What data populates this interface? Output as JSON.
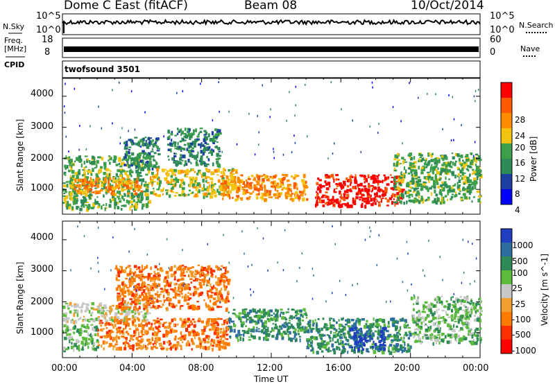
{
  "header": {
    "station": "Dome C East (fitACF)",
    "beam": "Beam 08",
    "date": "10/Oct/2014"
  },
  "left_labels": {
    "nsky": "N.Sky",
    "freq_line1": "Freq.",
    "freq_line2": "[MHz]",
    "cpid": "CPID"
  },
  "right_labels": {
    "nsearch": "N.Search",
    "nave": "Nave"
  },
  "strip_ticks": {
    "noise_left": [
      "10^5",
      "10^0"
    ],
    "noise_right": [
      "10^5",
      "10^0"
    ],
    "freq_left": [
      "18",
      "8"
    ],
    "freq_right": [
      "60",
      "0"
    ]
  },
  "cpid_text": "twofsound 3501",
  "colors": {
    "power_scale": [
      "#0000ff",
      "#1c3fa0",
      "#2e8b57",
      "#3c9f4a",
      "#f2c40f",
      "#ff8c00",
      "#ff5a00",
      "#ff0000"
    ],
    "velocity_scale": [
      "#1f3fbf",
      "#2d6e9f",
      "#2e8b57",
      "#5dbb3c",
      "#c8c8c8",
      "#f0a030",
      "#ff7a00",
      "#ff3000",
      "#ff0000"
    ]
  },
  "chart_data": [
    {
      "type": "heatmap",
      "title": "Power",
      "ylabel": "Slant Range [km]",
      "ylim": [
        200,
        4600
      ],
      "yticks": [
        "1000",
        "2000",
        "3000",
        "4000"
      ],
      "colorbar_label": "Power [dB]",
      "colorbar_ticks": [
        "4",
        "8",
        "12",
        "16",
        "20",
        "24",
        "28"
      ],
      "bands": [
        {
          "start_hr": 0.0,
          "end_hr": 5.0,
          "range_lo": 400,
          "range_hi": 2100,
          "level": 3
        },
        {
          "start_hr": 0.5,
          "end_hr": 4.5,
          "range_lo": 900,
          "range_hi": 1400,
          "level": 5
        },
        {
          "start_hr": 3.5,
          "end_hr": 5.5,
          "range_lo": 1700,
          "range_hi": 2700,
          "level": 2
        },
        {
          "start_hr": 5.0,
          "end_hr": 10.0,
          "range_lo": 800,
          "range_hi": 1700,
          "level": 4
        },
        {
          "start_hr": 6.0,
          "end_hr": 9.0,
          "range_lo": 1800,
          "range_hi": 3000,
          "level": 2
        },
        {
          "start_hr": 9.0,
          "end_hr": 14.0,
          "range_lo": 700,
          "range_hi": 1500,
          "level": 5
        },
        {
          "start_hr": 14.5,
          "end_hr": 19.5,
          "range_lo": 500,
          "range_hi": 1500,
          "level": 7
        },
        {
          "start_hr": 19.0,
          "end_hr": 24.0,
          "range_lo": 600,
          "range_hi": 2200,
          "level": 3
        }
      ]
    },
    {
      "type": "heatmap",
      "title": "Velocity",
      "ylabel": "Slant Range [km]",
      "ylim": [
        200,
        4600
      ],
      "yticks": [
        "1000",
        "2000",
        "3000",
        "4000"
      ],
      "xlabel": "Time UT",
      "xticks": [
        "00:00",
        "04:00",
        "08:00",
        "12:00",
        "16:00",
        "20:00",
        "00:00"
      ],
      "colorbar_label": "Velocity [m s^-1]",
      "colorbar_ticks": [
        "1000",
        "500",
        "100",
        "25",
        "-25",
        "-100",
        "-500",
        "-1000"
      ],
      "bands": [
        {
          "start_hr": 0.0,
          "end_hr": 5.0,
          "range_lo": 1400,
          "range_hi": 2000,
          "level": 4
        },
        {
          "start_hr": 0.0,
          "end_hr": 2.0,
          "range_lo": 500,
          "range_hi": 1300,
          "level": 3
        },
        {
          "start_hr": 2.0,
          "end_hr": 9.5,
          "range_lo": 500,
          "range_hi": 1500,
          "level": 6
        },
        {
          "start_hr": 3.0,
          "end_hr": 9.5,
          "range_lo": 1800,
          "range_hi": 3200,
          "level": 6
        },
        {
          "start_hr": 9.5,
          "end_hr": 14.0,
          "range_lo": 800,
          "range_hi": 1800,
          "level": 2
        },
        {
          "start_hr": 14.0,
          "end_hr": 20.0,
          "range_lo": 400,
          "range_hi": 1500,
          "level": 2
        },
        {
          "start_hr": 16.5,
          "end_hr": 18.5,
          "range_lo": 500,
          "range_hi": 1200,
          "level": 0
        },
        {
          "start_hr": 20.0,
          "end_hr": 24.0,
          "range_lo": 700,
          "range_hi": 2200,
          "level": 3
        }
      ]
    }
  ]
}
